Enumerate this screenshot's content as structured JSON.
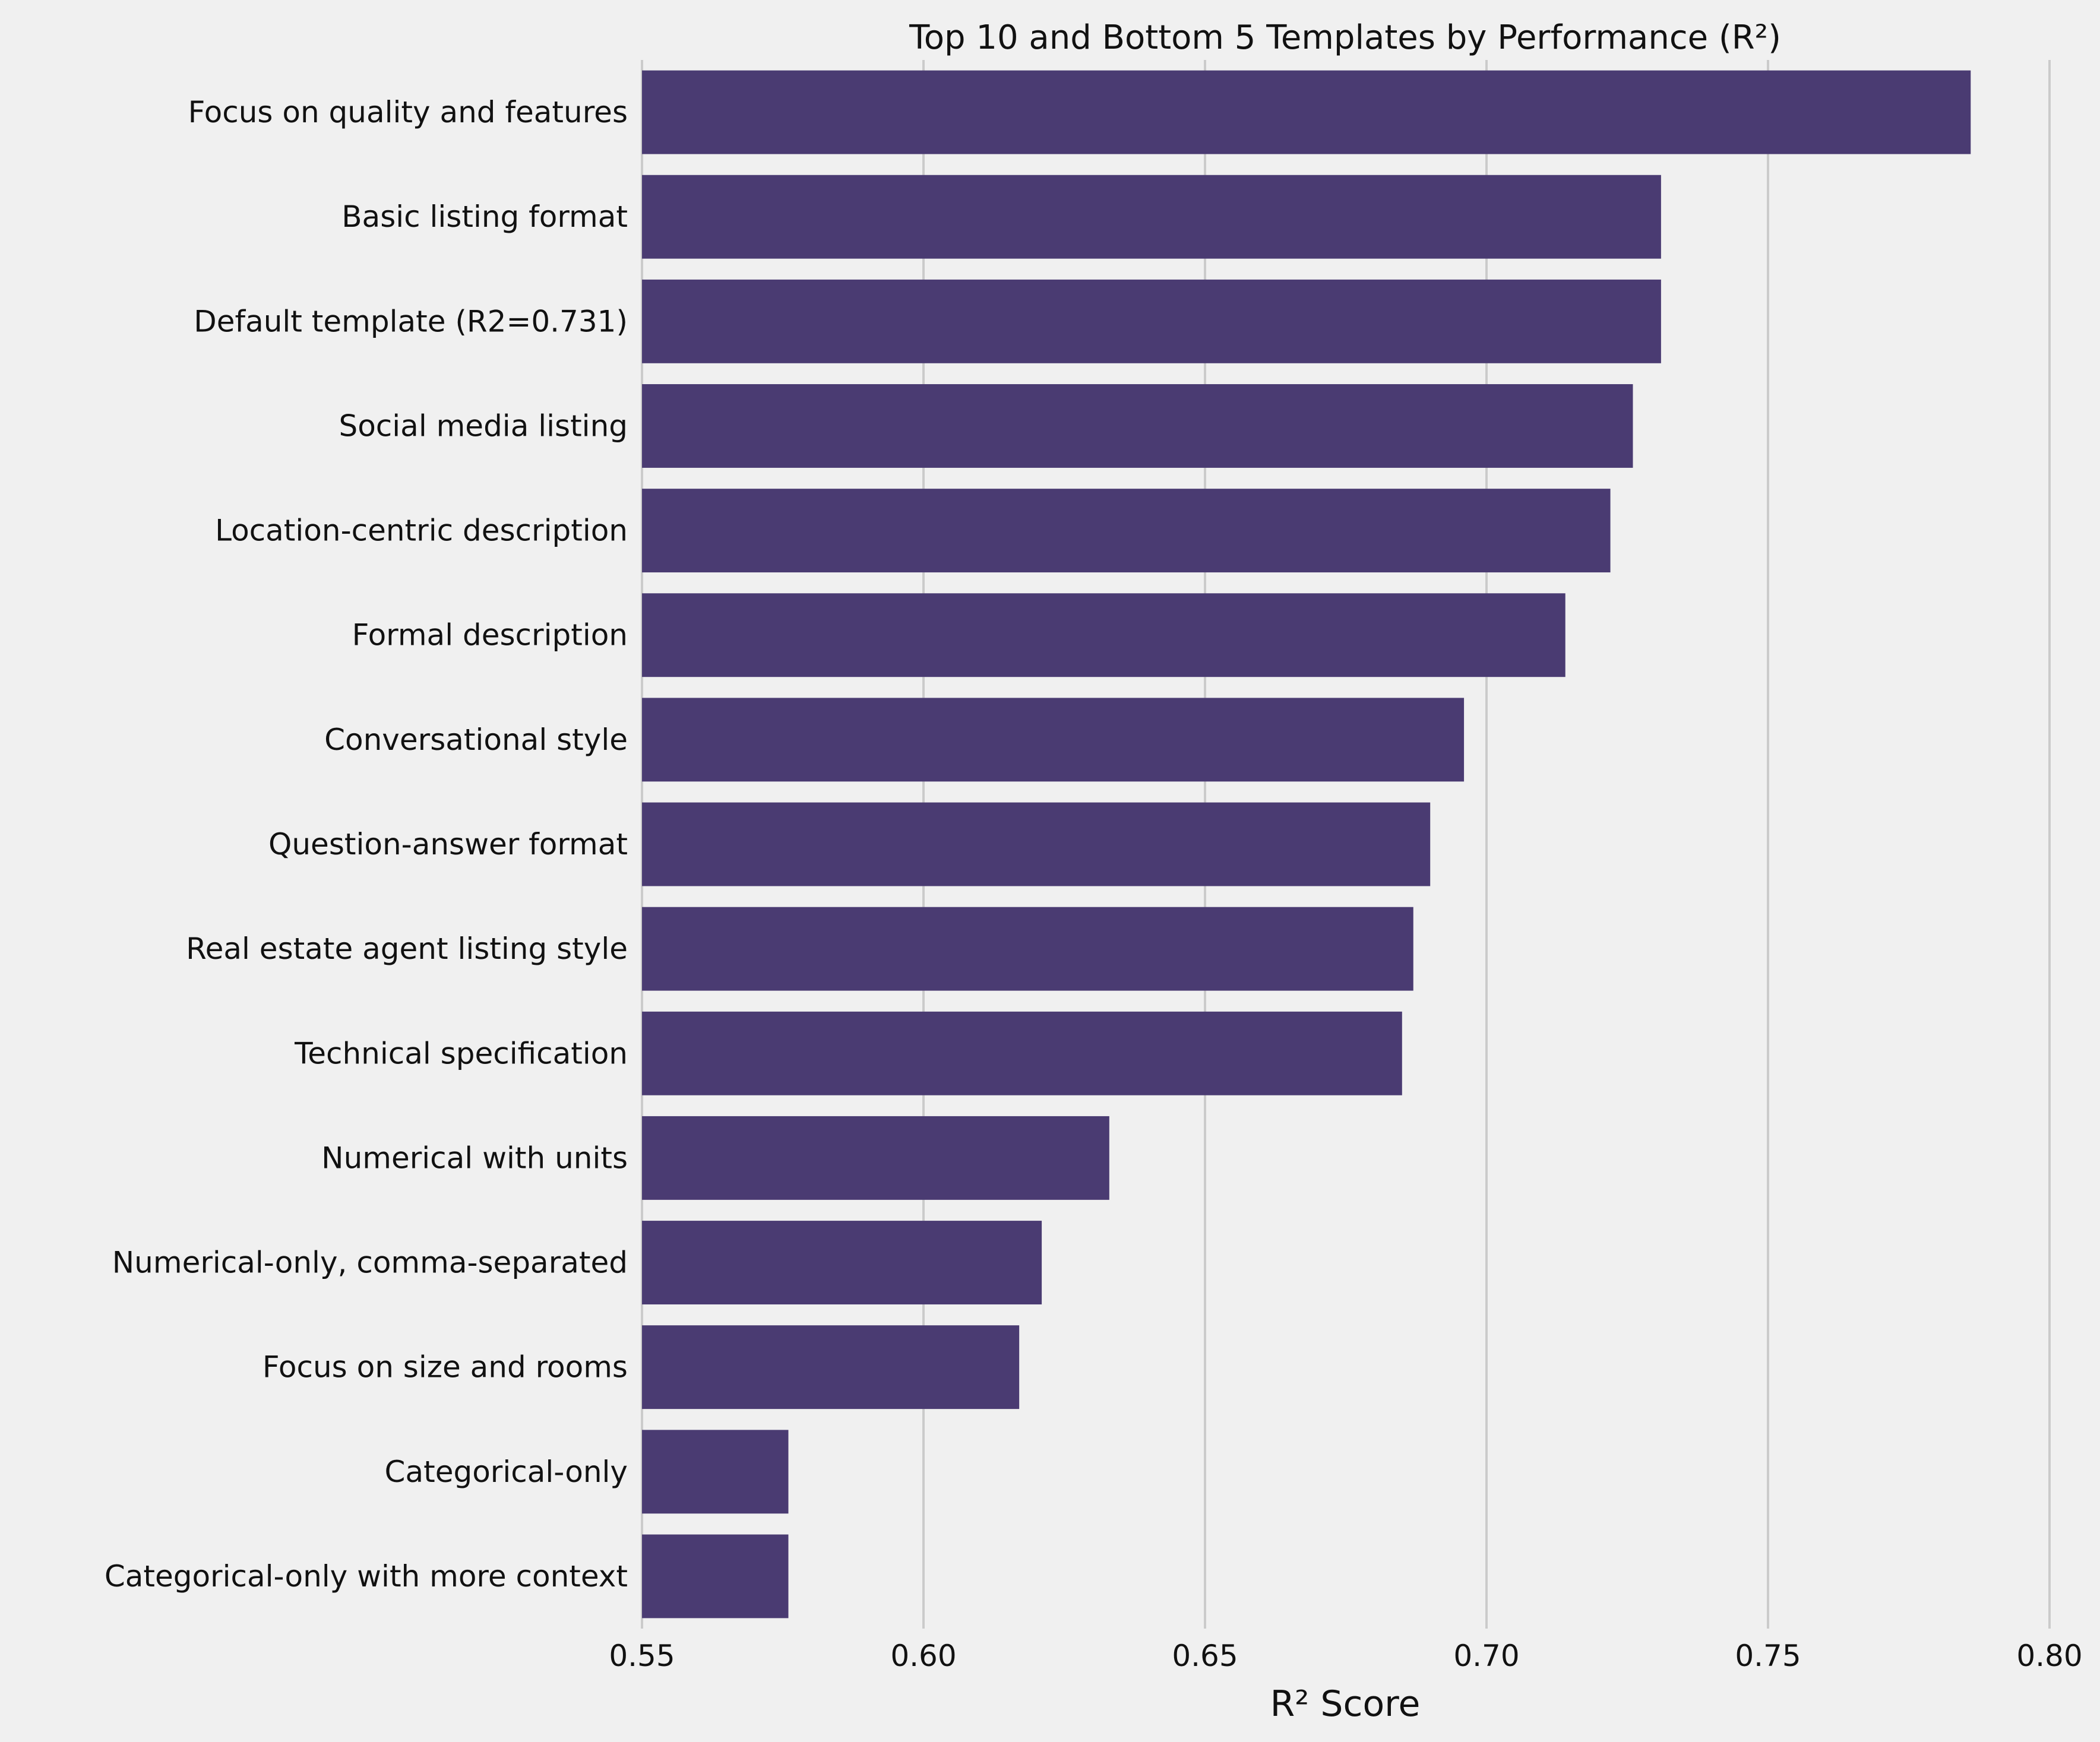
{
  "chart_data": {
    "type": "bar",
    "orientation": "horizontal",
    "title": "Top 10 and Bottom 5 Templates by Performance (R²)",
    "xlabel": "R² Score",
    "ylabel": "",
    "xlim": [
      0.55,
      0.8
    ],
    "xticks": [
      0.55,
      0.6,
      0.65,
      0.7,
      0.75,
      0.8
    ],
    "xtick_labels": [
      "0.55",
      "0.60",
      "0.65",
      "0.70",
      "0.75",
      "0.80"
    ],
    "grid": "vertical",
    "bar_color": "#4a3b72",
    "background": "#f0f0f0",
    "categories": [
      "Focus on quality and features",
      "Basic listing format",
      "Default template (R2=0.731)",
      "Social media listing",
      "Location-centric description",
      "Formal description",
      "Conversational style",
      "Question-answer format",
      "Real estate agent listing style",
      "Technical specification",
      "Numerical with units",
      "Numerical-only, comma-separated",
      "Focus on size and rooms",
      "Categorical-only",
      "Categorical-only with more context"
    ],
    "values": [
      0.786,
      0.731,
      0.731,
      0.726,
      0.722,
      0.714,
      0.696,
      0.69,
      0.687,
      0.685,
      0.633,
      0.621,
      0.617,
      0.576,
      0.576
    ]
  }
}
